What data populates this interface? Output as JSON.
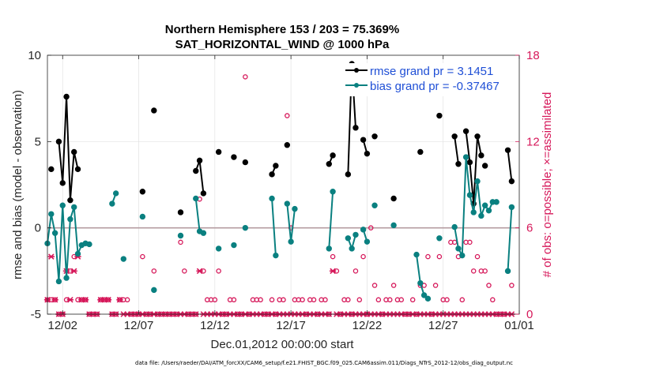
{
  "chart_data": {
    "type": "line",
    "title": "Northern Hemisphere 153 / 203 = 75.369%",
    "subtitle": "SAT_HORIZONTAL_WIND @ 1000 hPa",
    "xlabel": "Dec.01,2012 00:00:00 start",
    "ylabel": "rmse and bias (model - observation)",
    "y2label": "# of obs: o=possible; ×=assimilated",
    "xlim": [
      0,
      31
    ],
    "ylim": [
      -5,
      10
    ],
    "y2lim": [
      0,
      18
    ],
    "x_ticks": [
      1,
      6,
      11,
      16,
      21,
      26,
      31
    ],
    "x_tick_labels": [
      "12/02",
      "12/07",
      "12/12",
      "12/17",
      "12/22",
      "12/27",
      "01/01"
    ],
    "y_ticks": [
      -5,
      0,
      5,
      10
    ],
    "y_tick_labels": [
      "-5",
      "0",
      "5",
      "10"
    ],
    "y2_ticks": [
      0,
      6,
      12,
      18
    ],
    "y2_tick_labels": [
      "0",
      "6",
      "12",
      "18"
    ],
    "zero_line": 0,
    "grid": true,
    "legend_position": "top-right",
    "colors": {
      "rmse": "#000000",
      "bias": "#0a8080",
      "obs": "#d6185a",
      "zero": "#b49ca0",
      "grid": "#e2e2e2",
      "legend_text": "#1f4fd6"
    },
    "series": [
      {
        "name": "rmse grand pr = 3.1451",
        "segments": [
          [
            [
              0.25,
              3.4
            ]
          ],
          [
            [
              0.75,
              5.0
            ],
            [
              1.0,
              2.6
            ],
            [
              1.25,
              7.6
            ],
            [
              1.5,
              1.6
            ],
            [
              1.75,
              4.4
            ],
            [
              2.0,
              3.4
            ]
          ],
          [
            [
              6.25,
              2.1
            ]
          ],
          [
            [
              7.0,
              6.8
            ]
          ],
          [
            [
              8.75,
              0.9
            ]
          ],
          [
            [
              9.75,
              3.3
            ],
            [
              10.0,
              3.9
            ],
            [
              10.25,
              2.0
            ]
          ],
          [
            [
              11.25,
              4.4
            ]
          ],
          [
            [
              12.25,
              4.1
            ]
          ],
          [
            [
              13.0,
              3.8
            ]
          ],
          [
            [
              14.75,
              3.1
            ],
            [
              15.0,
              3.6
            ]
          ],
          [
            [
              15.75,
              4.8
            ]
          ],
          [
            [
              18.5,
              3.7
            ],
            [
              18.75,
              4.2
            ]
          ],
          [
            [
              19.75,
              3.1
            ],
            [
              20.0,
              9.5
            ],
            [
              20.25,
              5.8
            ]
          ],
          [
            [
              20.75,
              5.1
            ],
            [
              21.0,
              4.3
            ]
          ],
          [
            [
              21.5,
              5.3
            ]
          ],
          [
            [
              22.75,
              1.7
            ]
          ],
          [
            [
              24.5,
              4.4
            ]
          ],
          [
            [
              25.75,
              6.5
            ]
          ],
          [
            [
              26.75,
              5.3
            ],
            [
              27.0,
              3.7
            ]
          ],
          [
            [
              27.5,
              5.6
            ],
            [
              27.75,
              3.8
            ],
            [
              28.0,
              1.4
            ],
            [
              28.25,
              5.3
            ],
            [
              28.5,
              4.2
            ]
          ],
          [
            [
              28.75,
              3.6
            ]
          ],
          [
            [
              30.25,
              4.5
            ],
            [
              30.5,
              2.7
            ]
          ]
        ]
      },
      {
        "name": "bias grand pr = -0.37467",
        "segments": [
          [
            [
              0.0,
              -0.9
            ],
            [
              0.25,
              0.8
            ],
            [
              0.5,
              -0.3
            ],
            [
              0.75,
              -3.1
            ],
            [
              1.0,
              1.3
            ],
            [
              1.25,
              -2.9
            ],
            [
              1.5,
              0.5
            ],
            [
              1.75,
              1.2
            ],
            [
              2.0,
              -1.5
            ],
            [
              2.25,
              -1.0
            ],
            [
              2.5,
              -0.9
            ]
          ],
          [
            [
              2.75,
              -0.95
            ]
          ],
          [
            [
              4.25,
              1.4
            ],
            [
              4.5,
              2.0
            ]
          ],
          [
            [
              5.0,
              -1.8
            ]
          ],
          [
            [
              6.25,
              0.65
            ]
          ],
          [
            [
              7.0,
              -3.6
            ]
          ],
          [
            [
              8.75,
              -0.45
            ]
          ],
          [
            [
              9.75,
              1.7
            ],
            [
              10.0,
              -0.2
            ],
            [
              10.25,
              -0.3
            ]
          ],
          [
            [
              11.25,
              -1.2
            ]
          ],
          [
            [
              12.25,
              -1.0
            ]
          ],
          [
            [
              13.0,
              0.0
            ]
          ],
          [
            [
              14.75,
              1.7
            ],
            [
              15.0,
              -1.6
            ]
          ],
          [
            [
              15.75,
              1.4
            ],
            [
              16.0,
              -0.8
            ],
            [
              16.25,
              1.1
            ]
          ],
          [
            [
              18.5,
              -1.2
            ],
            [
              18.75,
              2.1
            ]
          ],
          [
            [
              19.75,
              -0.6
            ],
            [
              20.0,
              -1.2
            ],
            [
              20.25,
              -0.4
            ]
          ],
          [
            [
              20.75,
              -0.1
            ],
            [
              21.0,
              -0.8
            ]
          ],
          [
            [
              21.5,
              1.3
            ]
          ],
          [
            [
              22.75,
              0.15
            ]
          ],
          [
            [
              24.25,
              -1.55
            ],
            [
              24.5,
              -3.2
            ],
            [
              24.75,
              -3.9
            ],
            [
              25.0,
              -4.1
            ]
          ],
          [
            [
              25.75,
              -0.6
            ]
          ],
          [
            [
              26.75,
              0.05
            ],
            [
              27.0,
              -1.2
            ],
            [
              27.25,
              -1.6
            ],
            [
              27.5,
              4.1
            ],
            [
              27.75,
              1.9
            ],
            [
              28.0,
              0.9
            ],
            [
              28.25,
              2.7
            ],
            [
              28.5,
              0.7
            ],
            [
              28.75,
              1.3
            ],
            [
              29.0,
              1.0
            ],
            [
              29.25,
              1.5
            ]
          ],
          [
            [
              29.5,
              1.5
            ]
          ],
          [
            [
              30.25,
              -2.5
            ],
            [
              30.5,
              1.2
            ]
          ]
        ]
      }
    ],
    "obs_possible": [
      [
        0.0,
        1
      ],
      [
        0.25,
        1
      ],
      [
        0.5,
        1
      ],
      [
        0.75,
        0
      ],
      [
        1.0,
        0
      ],
      [
        1.25,
        1
      ],
      [
        1.5,
        3
      ],
      [
        1.75,
        4
      ],
      [
        2.0,
        1
      ],
      [
        2.25,
        1
      ],
      [
        2.5,
        1
      ],
      [
        2.75,
        0
      ],
      [
        3.0,
        0
      ],
      [
        3.25,
        0
      ],
      [
        3.5,
        1
      ],
      [
        3.75,
        1
      ],
      [
        4.0,
        1
      ],
      [
        4.25,
        0
      ],
      [
        4.5,
        0
      ],
      [
        4.75,
        1
      ],
      [
        5.0,
        1
      ],
      [
        5.25,
        1
      ],
      [
        5.5,
        0
      ],
      [
        5.75,
        0
      ],
      [
        6.0,
        0
      ],
      [
        6.25,
        4
      ],
      [
        6.5,
        0
      ],
      [
        6.75,
        0
      ],
      [
        7.0,
        3
      ],
      [
        7.25,
        0
      ],
      [
        7.5,
        0
      ],
      [
        7.75,
        0
      ],
      [
        8.0,
        0
      ],
      [
        8.25,
        0
      ],
      [
        8.5,
        0
      ],
      [
        8.75,
        5
      ],
      [
        9.0,
        3
      ],
      [
        9.25,
        0
      ],
      [
        9.5,
        0
      ],
      [
        9.75,
        0
      ],
      [
        10.0,
        8
      ],
      [
        10.25,
        3
      ],
      [
        10.5,
        1
      ],
      [
        10.75,
        1
      ],
      [
        11.0,
        1
      ],
      [
        11.25,
        3
      ],
      [
        11.5,
        0
      ],
      [
        11.75,
        0
      ],
      [
        12.0,
        1
      ],
      [
        12.25,
        1
      ],
      [
        12.5,
        0
      ],
      [
        12.75,
        0
      ],
      [
        13.0,
        16.5
      ],
      [
        13.25,
        0
      ],
      [
        13.5,
        1
      ],
      [
        13.75,
        1
      ],
      [
        14.0,
        1
      ],
      [
        14.25,
        0
      ],
      [
        14.5,
        0
      ],
      [
        14.75,
        1
      ],
      [
        15.0,
        0
      ],
      [
        15.25,
        1
      ],
      [
        15.5,
        1
      ],
      [
        15.75,
        13.8
      ],
      [
        16.0,
        6
      ],
      [
        16.25,
        1
      ],
      [
        16.5,
        1
      ],
      [
        16.75,
        1
      ],
      [
        17.0,
        0
      ],
      [
        17.25,
        1
      ],
      [
        17.5,
        1
      ],
      [
        17.75,
        0
      ],
      [
        18.0,
        1
      ],
      [
        18.25,
        1
      ],
      [
        18.5,
        0
      ],
      [
        18.75,
        4
      ],
      [
        19.0,
        3
      ],
      [
        19.25,
        0
      ],
      [
        19.5,
        1
      ],
      [
        19.75,
        1
      ],
      [
        20.0,
        0
      ],
      [
        20.25,
        3
      ],
      [
        20.5,
        1
      ],
      [
        20.75,
        4
      ],
      [
        21.0,
        0
      ],
      [
        21.25,
        6
      ],
      [
        21.5,
        2
      ],
      [
        21.75,
        1
      ],
      [
        22.0,
        0
      ],
      [
        22.25,
        1
      ],
      [
        22.5,
        1
      ],
      [
        22.75,
        2
      ],
      [
        23.0,
        1
      ],
      [
        23.25,
        1
      ],
      [
        23.5,
        0
      ],
      [
        23.75,
        0
      ],
      [
        24.0,
        1
      ],
      [
        24.25,
        0
      ],
      [
        24.5,
        2
      ],
      [
        24.75,
        2
      ],
      [
        25.0,
        4
      ],
      [
        25.25,
        0
      ],
      [
        25.5,
        2
      ],
      [
        25.75,
        4
      ],
      [
        26.0,
        1
      ],
      [
        26.25,
        1
      ],
      [
        26.5,
        5
      ],
      [
        26.75,
        5
      ],
      [
        27.0,
        4
      ],
      [
        27.25,
        1
      ],
      [
        27.5,
        5
      ],
      [
        27.75,
        5
      ],
      [
        28.0,
        3
      ],
      [
        28.25,
        4
      ],
      [
        28.5,
        3
      ],
      [
        28.75,
        3
      ],
      [
        29.0,
        2
      ],
      [
        29.25,
        1
      ],
      [
        29.5,
        0
      ],
      [
        29.75,
        0
      ],
      [
        30.0,
        0
      ],
      [
        30.25,
        3
      ],
      [
        30.5,
        2
      ]
    ],
    "obs_assimilated": [
      [
        0.0,
        1
      ],
      [
        0.25,
        4
      ],
      [
        0.5,
        1
      ],
      [
        0.75,
        0
      ],
      [
        1.0,
        0
      ],
      [
        1.25,
        3
      ],
      [
        1.5,
        1
      ],
      [
        1.75,
        3
      ],
      [
        2.0,
        4
      ],
      [
        2.25,
        1
      ],
      [
        2.5,
        1
      ],
      [
        2.75,
        0
      ],
      [
        3.0,
        0
      ],
      [
        3.25,
        0
      ],
      [
        3.5,
        1
      ],
      [
        3.75,
        1
      ],
      [
        4.0,
        1
      ],
      [
        4.25,
        0
      ],
      [
        4.5,
        0
      ],
      [
        4.75,
        1
      ],
      [
        5.0,
        0
      ],
      [
        5.25,
        0
      ],
      [
        5.5,
        0
      ],
      [
        5.75,
        0
      ],
      [
        6.0,
        0
      ],
      [
        6.25,
        0
      ],
      [
        6.5,
        0
      ],
      [
        6.75,
        0
      ],
      [
        7.0,
        0
      ],
      [
        7.25,
        0
      ],
      [
        7.5,
        0
      ],
      [
        7.75,
        0
      ],
      [
        8.0,
        0
      ],
      [
        8.25,
        0
      ],
      [
        8.5,
        0
      ],
      [
        8.75,
        0
      ],
      [
        9.0,
        0
      ],
      [
        9.25,
        0
      ],
      [
        9.5,
        0
      ],
      [
        9.75,
        0
      ],
      [
        10.0,
        3
      ],
      [
        10.25,
        0
      ],
      [
        10.5,
        0
      ],
      [
        10.75,
        0
      ],
      [
        11.0,
        0
      ],
      [
        11.25,
        0
      ],
      [
        11.5,
        0
      ],
      [
        11.75,
        0
      ],
      [
        12.0,
        0
      ],
      [
        12.25,
        0
      ],
      [
        12.5,
        0
      ],
      [
        12.75,
        0
      ],
      [
        13.0,
        0
      ],
      [
        13.25,
        0
      ],
      [
        13.5,
        0
      ],
      [
        13.75,
        0
      ],
      [
        14.0,
        0
      ],
      [
        14.25,
        0
      ],
      [
        14.5,
        0
      ],
      [
        14.75,
        0
      ],
      [
        15.0,
        0
      ],
      [
        15.25,
        0
      ],
      [
        15.5,
        0
      ],
      [
        15.75,
        0
      ],
      [
        16.0,
        0
      ],
      [
        16.25,
        0
      ],
      [
        16.5,
        0
      ],
      [
        16.75,
        0
      ],
      [
        17.0,
        0
      ],
      [
        17.25,
        0
      ],
      [
        17.5,
        0
      ],
      [
        17.75,
        0
      ],
      [
        18.0,
        0
      ],
      [
        18.25,
        0
      ],
      [
        18.5,
        0
      ],
      [
        18.75,
        3
      ],
      [
        19.0,
        0
      ],
      [
        19.25,
        0
      ],
      [
        19.5,
        0
      ],
      [
        19.75,
        0
      ],
      [
        20.0,
        0
      ],
      [
        20.25,
        0
      ],
      [
        20.5,
        0
      ],
      [
        20.75,
        0
      ],
      [
        21.0,
        0
      ],
      [
        21.25,
        0
      ],
      [
        21.5,
        0
      ],
      [
        21.75,
        0
      ],
      [
        22.0,
        0
      ],
      [
        22.25,
        0
      ],
      [
        22.5,
        0
      ],
      [
        22.75,
        0
      ],
      [
        23.0,
        0
      ],
      [
        23.25,
        0
      ],
      [
        23.5,
        0
      ],
      [
        23.75,
        0
      ],
      [
        24.0,
        0
      ],
      [
        24.25,
        0
      ],
      [
        24.5,
        0
      ],
      [
        24.75,
        0
      ],
      [
        25.0,
        0
      ],
      [
        25.25,
        0
      ],
      [
        25.5,
        0
      ],
      [
        25.75,
        0
      ],
      [
        26.0,
        0
      ],
      [
        26.25,
        0
      ],
      [
        26.5,
        0
      ],
      [
        26.75,
        0
      ],
      [
        27.0,
        0
      ],
      [
        27.25,
        0
      ],
      [
        27.5,
        0
      ],
      [
        27.75,
        0
      ],
      [
        28.0,
        0
      ],
      [
        28.25,
        0
      ],
      [
        28.5,
        0
      ],
      [
        28.75,
        0
      ],
      [
        29.0,
        0
      ],
      [
        29.25,
        0
      ],
      [
        29.5,
        0
      ],
      [
        29.75,
        0
      ],
      [
        30.0,
        0
      ],
      [
        30.25,
        0
      ],
      [
        30.5,
        0
      ]
    ],
    "footer": "data file: /Users/raeder/DAI/ATM_forcXX/CAM6_setup/f.e21.FHIST_BGC.f09_025.CAM6assim.011/Diags_NTrS_2012-12/obs_diag_output.nc"
  }
}
